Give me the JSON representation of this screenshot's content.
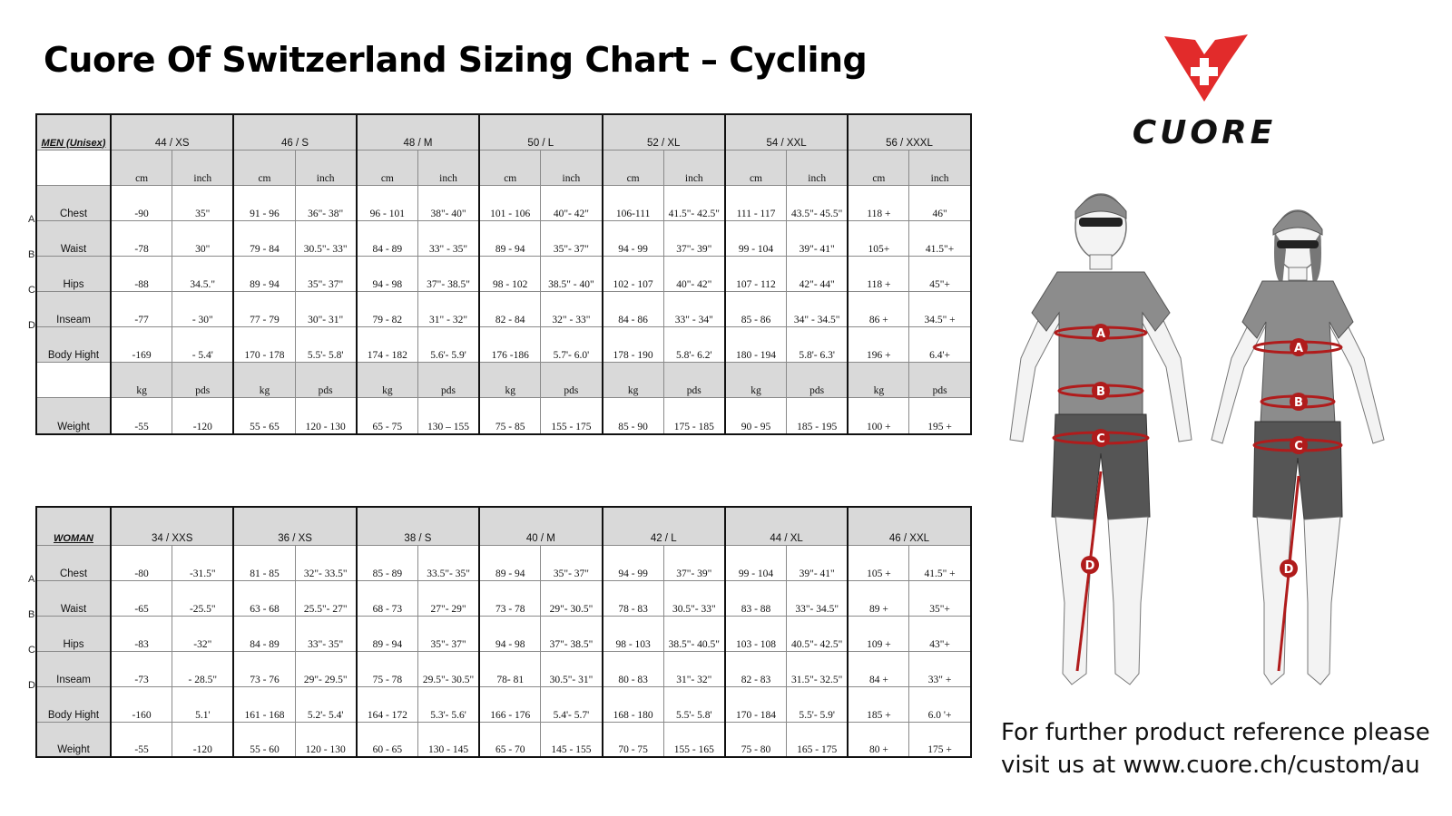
{
  "title": "Cuore Of Switzerland Sizing Chart – Cycling",
  "logo": {
    "icon": "cuore-cross-logo",
    "wordmark": "CUORE",
    "color": "#e02a2a"
  },
  "men": {
    "corner": "MEN (Unisex)",
    "sizes": [
      "44 / XS",
      "46 / S",
      "48 / M",
      "50 / L",
      "52 / XL",
      "54 / XXL",
      "56 / XXXL"
    ],
    "units": [
      "cm",
      "inch"
    ],
    "rows": [
      {
        "letter": "A",
        "label": "Chest",
        "values": [
          [
            "-90",
            "35\""
          ],
          [
            "91 - 96",
            "36\"- 38\""
          ],
          [
            "96 - 101",
            "38\"- 40\""
          ],
          [
            "101 - 106",
            "40\"- 42\""
          ],
          [
            "106-111",
            "41.5\"- 42.5\""
          ],
          [
            "111 - 117",
            "43.5\"- 45.5\""
          ],
          [
            "118 +",
            "46\""
          ]
        ]
      },
      {
        "letter": "B",
        "label": "Waist",
        "values": [
          [
            "-78",
            "30\""
          ],
          [
            "79 - 84",
            "30.5\"- 33\""
          ],
          [
            "84 - 89",
            "33\" - 35\""
          ],
          [
            "89 - 94",
            "35\"- 37\""
          ],
          [
            "94 - 99",
            "37\"- 39\""
          ],
          [
            "99 - 104",
            "39\"- 41\""
          ],
          [
            "105+",
            "41.5\"+"
          ]
        ]
      },
      {
        "letter": "C",
        "label": "Hips",
        "values": [
          [
            "-88",
            "34.5.\""
          ],
          [
            "89 - 94",
            "35\"- 37\""
          ],
          [
            "94 - 98",
            "37\"- 38.5\""
          ],
          [
            "98 - 102",
            "38.5\" - 40\""
          ],
          [
            "102 - 107",
            "40\"- 42\""
          ],
          [
            "107 - 112",
            "42\"- 44\""
          ],
          [
            "118 +",
            "45\"+"
          ]
        ]
      },
      {
        "letter": "D",
        "label": "Inseam",
        "values": [
          [
            "-77",
            "- 30\""
          ],
          [
            "77 - 79",
            "30\"- 31\""
          ],
          [
            "79 - 82",
            "31\" - 32\""
          ],
          [
            "82 - 84",
            "32\" - 33\""
          ],
          [
            "84 - 86",
            "33\" - 34\""
          ],
          [
            "85 - 86",
            "34\" - 34.5\""
          ],
          [
            "86 +",
            "34.5\" +"
          ]
        ]
      },
      {
        "letter": "",
        "label": "Body Hight",
        "values": [
          [
            "-169",
            "- 5.4'"
          ],
          [
            "170 - 178",
            "5.5'- 5.8'"
          ],
          [
            "174 - 182",
            "5.6'- 5.9'"
          ],
          [
            "176 -186",
            "5.7'- 6.0'"
          ],
          [
            "178 - 190",
            "5.8'- 6.2'"
          ],
          [
            "180 - 194",
            "5.8'- 6.3'"
          ],
          [
            "196 +",
            "6.4'+"
          ]
        ]
      }
    ],
    "weight_units": [
      "kg",
      "pds"
    ],
    "weight": {
      "label": "Weight",
      "values": [
        [
          "-55",
          "-120"
        ],
        [
          "55 - 65",
          "120 - 130"
        ],
        [
          "65 - 75",
          "130 – 155"
        ],
        [
          "75 - 85",
          "155 - 175"
        ],
        [
          "85 - 90",
          "175 - 185"
        ],
        [
          "90 - 95",
          "185 - 195"
        ],
        [
          "100 +",
          "195 +"
        ]
      ]
    }
  },
  "woman": {
    "corner": "WOMAN",
    "sizes": [
      "34 / XXS",
      "36 / XS",
      "38 / S",
      "40 / M",
      "42 / L",
      "44 / XL",
      "46 / XXL"
    ],
    "rows": [
      {
        "letter": "A",
        "label": "Chest",
        "values": [
          [
            "-80",
            "-31.5\""
          ],
          [
            "81 - 85",
            "32\"- 33.5\""
          ],
          [
            "85 - 89",
            "33.5\"- 35\""
          ],
          [
            "89 - 94",
            "35\"- 37\""
          ],
          [
            "94 - 99",
            "37\"- 39\""
          ],
          [
            "99 - 104",
            "39\"- 41\""
          ],
          [
            "105 +",
            "41.5\" +"
          ]
        ]
      },
      {
        "letter": "B",
        "label": "Waist",
        "values": [
          [
            "-65",
            "-25.5\""
          ],
          [
            "63 - 68",
            "25.5\"- 27\""
          ],
          [
            "68 - 73",
            "27\"- 29\""
          ],
          [
            "73 - 78",
            "29\"- 30.5\""
          ],
          [
            "78 - 83",
            "30.5\"- 33\""
          ],
          [
            "83 - 88",
            "33\"- 34.5\""
          ],
          [
            "89 +",
            "35\"+"
          ]
        ]
      },
      {
        "letter": "C",
        "label": "Hips",
        "values": [
          [
            "-83",
            "-32\""
          ],
          [
            "84 - 89",
            "33\"- 35\""
          ],
          [
            "89 - 94",
            "35\"- 37\""
          ],
          [
            "94 - 98",
            "37\"- 38.5\""
          ],
          [
            "98 - 103",
            "38.5\"- 40.5\""
          ],
          [
            "103 - 108",
            "40.5\"- 42.5\""
          ],
          [
            "109 +",
            "43\"+"
          ]
        ]
      },
      {
        "letter": "D",
        "label": "Inseam",
        "values": [
          [
            "-73",
            "- 28.5\""
          ],
          [
            "73 - 76",
            "29\"- 29.5\""
          ],
          [
            "75 - 78",
            "29.5\"- 30.5\""
          ],
          [
            "78- 81",
            "30.5\"- 31\""
          ],
          [
            "80 - 83",
            "31\"- 32\""
          ],
          [
            "82 - 83",
            "31.5\"- 32.5\""
          ],
          [
            "84 +",
            "33\" +"
          ]
        ]
      },
      {
        "letter": "",
        "label": "Body Hight",
        "values": [
          [
            "-160",
            "5.1'"
          ],
          [
            "161 - 168",
            "5.2'- 5.4'"
          ],
          [
            "164 - 172",
            "5.3'- 5.6'"
          ],
          [
            "166 - 176",
            "5.4'- 5.7'"
          ],
          [
            "168 - 180",
            "5.5'- 5.8'"
          ],
          [
            "170 - 184",
            "5.5'- 5.9'"
          ],
          [
            "185 +",
            "6.0 '+"
          ]
        ]
      },
      {
        "letter": "",
        "label": "Weight",
        "values": [
          [
            "-55",
            "-120"
          ],
          [
            "55 - 60",
            "120 - 130"
          ],
          [
            "60 - 65",
            "130 - 145"
          ],
          [
            "65 - 70",
            "145 - 155"
          ],
          [
            "70 - 75",
            "155 - 165"
          ],
          [
            "75 - 80",
            "165 - 175"
          ],
          [
            "80 +",
            "175 +"
          ]
        ]
      }
    ]
  },
  "figures": {
    "markers": [
      "A",
      "B",
      "C",
      "D"
    ],
    "shirt_color": "#8c8c8c",
    "shorts_color": "#555555",
    "measure_color": "#b01c1c"
  },
  "footer": {
    "line1": "For further product reference please",
    "line2": "visit us at www.cuore.ch/custom/au"
  }
}
